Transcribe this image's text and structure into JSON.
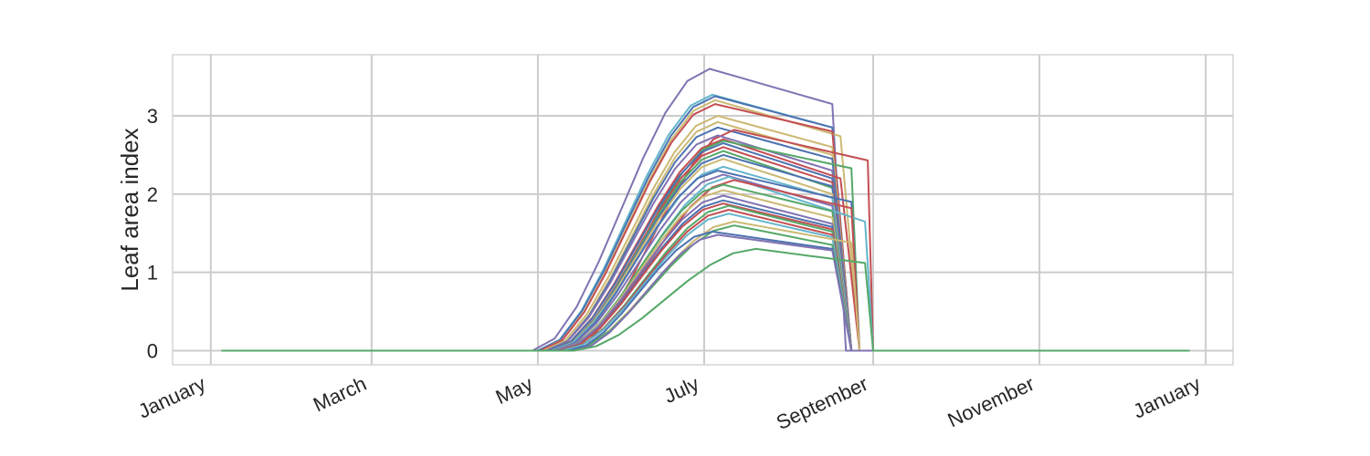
{
  "chart_data": {
    "type": "line",
    "title": "",
    "xlabel": "",
    "ylabel": "Leaf area index",
    "x_axis": {
      "type": "date",
      "range": [
        "2018-12-18",
        "2019-01-11"
      ],
      "ticks": [
        {
          "date": "2018-01-01",
          "label": "January"
        },
        {
          "date": "2018-03-01",
          "label": "March"
        },
        {
          "date": "2018-05-01",
          "label": "May"
        },
        {
          "date": "2018-07-01",
          "label": "July"
        },
        {
          "date": "2018-09-01",
          "label": "September"
        },
        {
          "date": "2018-11-01",
          "label": "November"
        },
        {
          "date": "2019-01-01",
          "label": "January"
        }
      ]
    },
    "y_axis": {
      "range": [
        -0.18,
        3.78
      ],
      "ticks": [
        0,
        1,
        2,
        3
      ]
    },
    "grid": true,
    "legend": "none",
    "palette": [
      "#4c72b0",
      "#55a868",
      "#c44e52",
      "#8172b2",
      "#ccb974",
      "#64b5cd"
    ],
    "line_width": 2,
    "season": {
      "flat_before": [
        "2018-01-05",
        "2018-04-29"
      ],
      "flat_after": [
        "2018-09-01",
        "2018-12-26"
      ]
    },
    "series_profiles": [
      {
        "peak": 3.6,
        "start": "2018-04-29",
        "peak_date": "2018-07-03",
        "end_value": 3.15,
        "end_date": "2018-08-17",
        "drop_date": "2018-08-22",
        "color": "#8172b2"
      },
      {
        "peak": 3.27,
        "start": "2018-05-01",
        "peak_date": "2018-07-04",
        "end_value": 2.85,
        "end_date": "2018-08-17",
        "drop_date": "2018-08-24",
        "color": "#64b5cd"
      },
      {
        "peak": 3.25,
        "start": "2018-05-01",
        "peak_date": "2018-07-05",
        "end_value": 2.85,
        "end_date": "2018-08-17",
        "drop_date": "2018-08-24",
        "color": "#4c72b0"
      },
      {
        "peak": 3.2,
        "start": "2018-05-02",
        "peak_date": "2018-07-05",
        "end_value": 2.74,
        "end_date": "2018-08-20",
        "drop_date": "2018-08-27",
        "color": "#ccb974"
      },
      {
        "peak": 3.15,
        "start": "2018-05-02",
        "peak_date": "2018-07-05",
        "end_value": 2.8,
        "end_date": "2018-08-17",
        "drop_date": "2018-08-24",
        "color": "#c44e52"
      },
      {
        "peak": 3.0,
        "start": "2018-05-03",
        "peak_date": "2018-07-06",
        "end_value": 2.6,
        "end_date": "2018-08-17",
        "drop_date": "2018-08-24",
        "color": "#ccb974"
      },
      {
        "peak": 2.92,
        "start": "2018-05-04",
        "peak_date": "2018-07-06",
        "end_value": 2.5,
        "end_date": "2018-08-17",
        "drop_date": "2018-08-24",
        "color": "#ccb974"
      },
      {
        "peak": 2.85,
        "start": "2018-05-04",
        "peak_date": "2018-07-06",
        "end_value": 2.45,
        "end_date": "2018-08-17",
        "drop_date": "2018-08-24",
        "color": "#4c72b0"
      },
      {
        "peak": 2.82,
        "start": "2018-05-12",
        "peak_date": "2018-07-12",
        "end_value": 2.43,
        "end_date": "2018-08-30",
        "drop_date": "2018-09-01",
        "color": "#c44e52"
      },
      {
        "peak": 2.75,
        "start": "2018-05-04",
        "peak_date": "2018-07-06",
        "end_value": 2.3,
        "end_date": "2018-08-17",
        "drop_date": "2018-08-24",
        "color": "#8172b2"
      },
      {
        "peak": 2.7,
        "start": "2018-05-05",
        "peak_date": "2018-07-08",
        "end_value": 2.2,
        "end_date": "2018-08-20",
        "drop_date": "2018-08-27",
        "color": "#c44e52"
      },
      {
        "peak": 2.68,
        "start": "2018-05-08",
        "peak_date": "2018-07-08",
        "end_value": 2.33,
        "end_date": "2018-08-24",
        "drop_date": "2018-08-27",
        "color": "#55a868"
      },
      {
        "peak": 2.65,
        "start": "2018-05-05",
        "peak_date": "2018-07-08",
        "end_value": 2.2,
        "end_date": "2018-08-17",
        "drop_date": "2018-08-24",
        "color": "#4c72b0"
      },
      {
        "peak": 2.6,
        "start": "2018-05-06",
        "peak_date": "2018-07-08",
        "end_value": 2.15,
        "end_date": "2018-08-17",
        "drop_date": "2018-08-24",
        "color": "#c44e52"
      },
      {
        "peak": 2.55,
        "start": "2018-05-06",
        "peak_date": "2018-07-08",
        "end_value": 2.08,
        "end_date": "2018-08-17",
        "drop_date": "2018-08-24",
        "color": "#55a868"
      },
      {
        "peak": 2.5,
        "start": "2018-05-06",
        "peak_date": "2018-07-08",
        "end_value": 2.1,
        "end_date": "2018-08-17",
        "drop_date": "2018-08-24",
        "color": "#4c72b0"
      },
      {
        "peak": 2.45,
        "start": "2018-05-06",
        "peak_date": "2018-07-08",
        "end_value": 2.0,
        "end_date": "2018-08-17",
        "drop_date": "2018-08-24",
        "color": "#ccb974"
      },
      {
        "peak": 2.35,
        "start": "2018-05-06",
        "peak_date": "2018-07-08",
        "end_value": 1.95,
        "end_date": "2018-08-17",
        "drop_date": "2018-08-24",
        "color": "#64b5cd"
      },
      {
        "peak": 2.3,
        "start": "2018-05-07",
        "peak_date": "2018-07-06",
        "end_value": 1.9,
        "end_date": "2018-08-24",
        "drop_date": "2018-08-27",
        "color": "#4c72b0"
      },
      {
        "peak": 2.25,
        "start": "2018-05-07",
        "peak_date": "2018-07-08",
        "end_value": 1.85,
        "end_date": "2018-08-17",
        "drop_date": "2018-08-24",
        "color": "#8172b2"
      },
      {
        "peak": 2.22,
        "start": "2018-05-08",
        "peak_date": "2018-07-10",
        "end_value": 1.65,
        "end_date": "2018-08-29",
        "drop_date": "2018-09-01",
        "color": "#64b5cd"
      },
      {
        "peak": 2.18,
        "start": "2018-05-09",
        "peak_date": "2018-07-12",
        "end_value": 1.82,
        "end_date": "2018-08-24",
        "drop_date": "2018-08-27",
        "color": "#c44e52"
      },
      {
        "peak": 2.12,
        "start": "2018-05-08",
        "peak_date": "2018-07-08",
        "end_value": 1.78,
        "end_date": "2018-08-17",
        "drop_date": "2018-08-24",
        "color": "#55a868"
      },
      {
        "peak": 2.05,
        "start": "2018-05-08",
        "peak_date": "2018-07-08",
        "end_value": 1.7,
        "end_date": "2018-08-17",
        "drop_date": "2018-08-24",
        "color": "#ccb974"
      },
      {
        "peak": 1.98,
        "start": "2018-05-08",
        "peak_date": "2018-07-08",
        "end_value": 1.62,
        "end_date": "2018-08-17",
        "drop_date": "2018-08-24",
        "color": "#8172b2"
      },
      {
        "peak": 1.92,
        "start": "2018-05-09",
        "peak_date": "2018-07-08",
        "end_value": 1.58,
        "end_date": "2018-08-17",
        "drop_date": "2018-08-24",
        "color": "#4c72b0"
      },
      {
        "peak": 1.88,
        "start": "2018-05-09",
        "peak_date": "2018-07-08",
        "end_value": 1.55,
        "end_date": "2018-08-17",
        "drop_date": "2018-08-24",
        "color": "#c44e52"
      },
      {
        "peak": 1.85,
        "start": "2018-05-10",
        "peak_date": "2018-07-10",
        "end_value": 1.52,
        "end_date": "2018-08-17",
        "drop_date": "2018-08-24",
        "color": "#55a868"
      },
      {
        "peak": 1.8,
        "start": "2018-05-10",
        "peak_date": "2018-07-10",
        "end_value": 1.48,
        "end_date": "2018-08-17",
        "drop_date": "2018-08-24",
        "color": "#c44e52"
      },
      {
        "peak": 1.75,
        "start": "2018-05-10",
        "peak_date": "2018-07-10",
        "end_value": 1.45,
        "end_date": "2018-08-17",
        "drop_date": "2018-08-24",
        "color": "#64b5cd"
      },
      {
        "peak": 1.65,
        "start": "2018-05-12",
        "peak_date": "2018-07-12",
        "end_value": 1.38,
        "end_date": "2018-08-24",
        "drop_date": "2018-08-27",
        "color": "#ccb974"
      },
      {
        "peak": 1.6,
        "start": "2018-05-12",
        "peak_date": "2018-07-12",
        "end_value": 1.35,
        "end_date": "2018-08-17",
        "drop_date": "2018-08-24",
        "color": "#55a868"
      },
      {
        "peak": 1.52,
        "start": "2018-05-12",
        "peak_date": "2018-07-04",
        "end_value": 1.3,
        "end_date": "2018-08-17",
        "drop_date": "2018-08-24",
        "color": "#4c72b0"
      },
      {
        "peak": 1.48,
        "start": "2018-05-14",
        "peak_date": "2018-07-06",
        "end_value": 1.28,
        "end_date": "2018-08-17",
        "drop_date": "2018-08-24",
        "color": "#8172b2"
      },
      {
        "peak": 1.3,
        "start": "2018-05-14",
        "peak_date": "2018-07-20",
        "end_value": 1.12,
        "end_date": "2018-08-29",
        "drop_date": "2018-09-01",
        "color": "#55a868"
      }
    ]
  }
}
